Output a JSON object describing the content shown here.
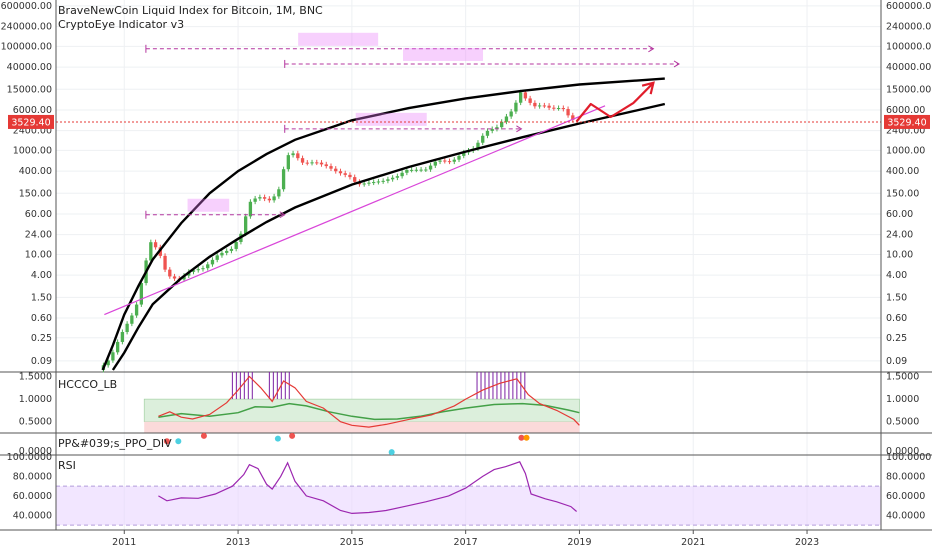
{
  "header": {
    "title": "BraveNewCoin Liquid Index for Bitcoin, 1M, BNC",
    "indicator": "CryptoEye Indicator v3"
  },
  "colors": {
    "up": "#26a69a",
    "up_strong": "#4caf50",
    "down": "#ef5350",
    "price_line": "#e53935",
    "channel": "#000000",
    "trendline": "#d946d9",
    "measure": "#e879f9",
    "arrow": "#e11d2b",
    "rsi": "#9c27b0",
    "band": "#e9d5ff",
    "hccco_fast": "#e53935",
    "hccco_slow": "#43a047",
    "hccco_green_zone": "#dcefdc",
    "hccco_red_zone": "#fbdada"
  },
  "chart_data": [
    {
      "type": "candlestick",
      "name": "price",
      "scale": "log",
      "y_ticks": [
        0.09,
        0.25,
        0.6,
        1.5,
        4.0,
        10.0,
        24.0,
        60.0,
        150.0,
        400.0,
        1000.0,
        2400.0,
        6000.0,
        15000.0,
        40000.0,
        100000.0,
        240000.0,
        600000.0
      ],
      "y_tick_labels": [
        "0.09",
        "0.25",
        "0.60",
        "1.50",
        "4.00",
        "10.00",
        "24.00",
        "60.00",
        "150.00",
        "400.00",
        "1000.00",
        "2400.00",
        "6000.00",
        "15000.00",
        "40000.00",
        "100000.00",
        "240000.00",
        "600000.00"
      ],
      "x_ticks": [
        2011,
        2013,
        2015,
        2017,
        2019,
        2021,
        2023
      ],
      "x_tick_labels": [
        "2011",
        "2013",
        "2015",
        "2017",
        "2019",
        "2021",
        "2023"
      ],
      "x_range": [
        2009.8,
        2024.3
      ],
      "ylim": [
        0.055,
        780000
      ],
      "current_price": 3529.4,
      "current_price_label": "3529.40",
      "anchors": [
        [
          2010.55,
          0.06
        ],
        [
          2010.75,
          0.1
        ],
        [
          2010.95,
          0.3
        ],
        [
          2011.2,
          0.9
        ],
        [
          2011.35,
          5.0
        ],
        [
          2011.45,
          18.0
        ],
        [
          2011.6,
          12.0
        ],
        [
          2011.75,
          4.0
        ],
        [
          2011.95,
          3.2
        ],
        [
          2012.15,
          4.8
        ],
        [
          2012.4,
          5.5
        ],
        [
          2012.65,
          10.0
        ],
        [
          2012.9,
          13.0
        ],
        [
          2013.05,
          25.0
        ],
        [
          2013.2,
          100.0
        ],
        [
          2013.35,
          130.0
        ],
        [
          2013.55,
          110.0
        ],
        [
          2013.7,
          150.0
        ],
        [
          2013.83,
          600.0
        ],
        [
          2013.92,
          1000.0
        ],
        [
          2014.0,
          800.0
        ],
        [
          2014.15,
          560.0
        ],
        [
          2014.35,
          600.0
        ],
        [
          2014.55,
          500.0
        ],
        [
          2014.75,
          380.0
        ],
        [
          2014.95,
          320.0
        ],
        [
          2015.1,
          220.0
        ],
        [
          2015.3,
          240.0
        ],
        [
          2015.55,
          260.0
        ],
        [
          2015.8,
          320.0
        ],
        [
          2015.95,
          420.0
        ],
        [
          2016.3,
          430.0
        ],
        [
          2016.5,
          650.0
        ],
        [
          2016.75,
          600.0
        ],
        [
          2016.95,
          900.0
        ],
        [
          2017.15,
          1100.0
        ],
        [
          2017.35,
          2300.0
        ],
        [
          2017.55,
          2800.0
        ],
        [
          2017.7,
          4300.0
        ],
        [
          2017.85,
          6400.0
        ],
        [
          2017.95,
          13800.0
        ],
        [
          2018.05,
          10000.0
        ],
        [
          2018.2,
          7000.0
        ],
        [
          2018.35,
          7500.0
        ],
        [
          2018.5,
          6400.0
        ],
        [
          2018.7,
          6600.0
        ],
        [
          2018.85,
          4000.0
        ],
        [
          2018.95,
          3600.0
        ]
      ],
      "upper_channel": [
        [
          2010.62,
          0.06
        ],
        [
          2010.8,
          0.18
        ],
        [
          2011.0,
          0.7
        ],
        [
          2011.25,
          2.5
        ],
        [
          2011.5,
          8.0
        ],
        [
          2012.0,
          40.0
        ],
        [
          2012.5,
          150.0
        ],
        [
          2013.0,
          400.0
        ],
        [
          2013.5,
          850.0
        ],
        [
          2014.0,
          1600.0
        ],
        [
          2015.0,
          3800.0
        ],
        [
          2016.0,
          6500.0
        ],
        [
          2017.0,
          10000.0
        ],
        [
          2018.0,
          14000.0
        ],
        [
          2019.0,
          18500.0
        ],
        [
          2020.5,
          24000.0
        ]
      ],
      "lower_channel": [
        [
          2010.8,
          0.06
        ],
        [
          2011.0,
          0.13
        ],
        [
          2011.25,
          0.4
        ],
        [
          2011.5,
          1.1
        ],
        [
          2012.0,
          3.5
        ],
        [
          2012.5,
          9.0
        ],
        [
          2013.0,
          20.0
        ],
        [
          2013.5,
          42.0
        ],
        [
          2014.0,
          80.0
        ],
        [
          2015.0,
          220.0
        ],
        [
          2016.0,
          480.0
        ],
        [
          2017.0,
          950.0
        ],
        [
          2018.0,
          1800.0
        ],
        [
          2019.0,
          3300.0
        ],
        [
          2020.5,
          7800.0
        ]
      ],
      "trendline": [
        [
          2010.65,
          0.7
        ],
        [
          2019.45,
          7200.0
        ]
      ],
      "measure_arrows": [
        {
          "y": 58.0,
          "x0": 2011.38,
          "x1": 2013.82
        },
        {
          "y": 2600.0,
          "x0": 2013.82,
          "x1": 2017.98
        },
        {
          "y": 90000.0,
          "x0": 2011.38,
          "x1": 2020.3
        },
        {
          "y": 46000.0,
          "x0": 2013.82,
          "x1": 2020.75
        }
      ],
      "projection_arrow": [
        [
          2018.95,
          3600.0
        ],
        [
          2019.2,
          7800.0
        ],
        [
          2019.55,
          4400.0
        ],
        [
          2019.95,
          8200.0
        ],
        [
          2020.3,
          20000.0
        ]
      ]
    },
    {
      "type": "line",
      "name": "HCCCO_LB",
      "title": "HCCCO_LB",
      "y_ticks": [
        0.5,
        1.0,
        1.5
      ],
      "y_tick_labels": [
        "0.5000",
        "1.0000",
        "1.5000"
      ],
      "ylim": [
        0.25,
        1.6
      ],
      "zone_green": [
        0.5,
        1.0
      ],
      "zone_red": [
        0.25,
        0.5
      ],
      "fast": [
        [
          2011.6,
          0.62
        ],
        [
          2011.8,
          0.72
        ],
        [
          2012.0,
          0.6
        ],
        [
          2012.2,
          0.56
        ],
        [
          2012.5,
          0.66
        ],
        [
          2012.8,
          0.92
        ],
        [
          2013.0,
          1.2
        ],
        [
          2013.2,
          1.5
        ],
        [
          2013.4,
          1.25
        ],
        [
          2013.6,
          0.95
        ],
        [
          2013.8,
          1.4
        ],
        [
          2014.0,
          1.25
        ],
        [
          2014.2,
          0.95
        ],
        [
          2014.5,
          0.8
        ],
        [
          2014.8,
          0.5
        ],
        [
          2015.0,
          0.42
        ],
        [
          2015.3,
          0.38
        ],
        [
          2015.6,
          0.44
        ],
        [
          2016.0,
          0.55
        ],
        [
          2016.4,
          0.65
        ],
        [
          2016.8,
          0.85
        ],
        [
          2017.0,
          1.0
        ],
        [
          2017.3,
          1.2
        ],
        [
          2017.6,
          1.35
        ],
        [
          2017.9,
          1.45
        ],
        [
          2018.1,
          1.1
        ],
        [
          2018.3,
          0.9
        ],
        [
          2018.6,
          0.75
        ],
        [
          2018.9,
          0.55
        ],
        [
          2019.0,
          0.42
        ]
      ],
      "slow": [
        [
          2011.6,
          0.6
        ],
        [
          2012.0,
          0.68
        ],
        [
          2012.5,
          0.62
        ],
        [
          2013.0,
          0.7
        ],
        [
          2013.3,
          0.83
        ],
        [
          2013.6,
          0.82
        ],
        [
          2013.9,
          0.9
        ],
        [
          2014.2,
          0.85
        ],
        [
          2014.6,
          0.72
        ],
        [
          2015.0,
          0.62
        ],
        [
          2015.4,
          0.55
        ],
        [
          2015.8,
          0.56
        ],
        [
          2016.2,
          0.62
        ],
        [
          2016.6,
          0.72
        ],
        [
          2017.0,
          0.8
        ],
        [
          2017.5,
          0.88
        ],
        [
          2018.0,
          0.9
        ],
        [
          2018.4,
          0.86
        ],
        [
          2018.8,
          0.76
        ],
        [
          2019.0,
          0.7
        ]
      ],
      "spike_groups": [
        [
          2012.9,
          2013.25
        ],
        [
          2013.55,
          2013.95
        ],
        [
          2017.2,
          2018.05
        ]
      ]
    },
    {
      "type": "scatter",
      "name": "PP&#039;s_PPO_DIV",
      "title": "PP&#039;s_PPO_DIV",
      "y_ticks": [
        0.0
      ],
      "y_tick_labels": [
        "0.0000"
      ],
      "points": [
        {
          "x": 2011.75,
          "color": "#ef5350",
          "lane": 0.35
        },
        {
          "x": 2011.95,
          "color": "#4dd0e1",
          "lane": 0.35
        },
        {
          "x": 2012.4,
          "color": "#ef5350",
          "lane": 0.05
        },
        {
          "x": 2013.7,
          "color": "#4dd0e1",
          "lane": 0.2
        },
        {
          "x": 2013.95,
          "color": "#ef5350",
          "lane": 0.05
        },
        {
          "x": 2015.7,
          "color": "#4dd0e1",
          "lane": 0.95
        },
        {
          "x": 2017.98,
          "color": "#ef5350",
          "lane": 0.15
        },
        {
          "x": 2018.07,
          "color": "#ff9800",
          "lane": 0.15
        }
      ]
    },
    {
      "type": "line",
      "name": "RSI",
      "title": "RSI",
      "y_ticks": [
        40.0,
        60.0,
        80.0,
        100.0
      ],
      "y_tick_labels": [
        "40.0000",
        "60.0000",
        "80.0000",
        "100.0000"
      ],
      "ylim": [
        25,
        102
      ],
      "band": [
        30,
        70
      ],
      "values": [
        [
          2011.6,
          60.0
        ],
        [
          2011.75,
          55.0
        ],
        [
          2012.0,
          58.0
        ],
        [
          2012.3,
          57.5
        ],
        [
          2012.6,
          62.0
        ],
        [
          2012.9,
          70.0
        ],
        [
          2013.1,
          82.0
        ],
        [
          2013.2,
          92.0
        ],
        [
          2013.35,
          88.0
        ],
        [
          2013.5,
          72.0
        ],
        [
          2013.6,
          67.0
        ],
        [
          2013.75,
          80.0
        ],
        [
          2013.87,
          94.0
        ],
        [
          2014.0,
          75.0
        ],
        [
          2014.2,
          60.0
        ],
        [
          2014.5,
          55.0
        ],
        [
          2014.8,
          45.0
        ],
        [
          2015.0,
          42.0
        ],
        [
          2015.3,
          43.0
        ],
        [
          2015.6,
          45.0
        ],
        [
          2016.0,
          50.0
        ],
        [
          2016.3,
          54.0
        ],
        [
          2016.7,
          60.0
        ],
        [
          2017.0,
          68.0
        ],
        [
          2017.3,
          80.0
        ],
        [
          2017.5,
          87.0
        ],
        [
          2017.7,
          90.0
        ],
        [
          2017.95,
          95.0
        ],
        [
          2018.05,
          83.0
        ],
        [
          2018.15,
          62.0
        ],
        [
          2018.4,
          57.0
        ],
        [
          2018.6,
          54.0
        ],
        [
          2018.85,
          49.0
        ],
        [
          2018.95,
          44.0
        ]
      ]
    }
  ]
}
